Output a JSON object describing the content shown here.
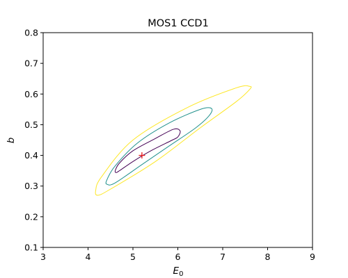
{
  "chart_data": {
    "type": "contour",
    "title": "MOS1 CCD1",
    "xlabel_main": "E",
    "xlabel_sub": "0",
    "ylabel": "b",
    "xlim": [
      3,
      9
    ],
    "ylim": [
      0.1,
      0.8
    ],
    "x_ticks": [
      3,
      4,
      5,
      6,
      7,
      8,
      9
    ],
    "y_ticks": [
      0.1,
      0.2,
      0.3,
      0.4,
      0.5,
      0.6,
      0.7,
      0.8
    ],
    "grid": false,
    "best_fit": {
      "x": 5.2,
      "y": 0.4,
      "marker": "+",
      "color": "#e8191b"
    },
    "contours": [
      {
        "color": "#440154",
        "points": [
          [
            4.62,
            0.344
          ],
          [
            4.7,
            0.35
          ],
          [
            5.0,
            0.38
          ],
          [
            5.4,
            0.415
          ],
          [
            5.85,
            0.448
          ],
          [
            6.0,
            0.46
          ],
          [
            6.05,
            0.48
          ],
          [
            5.9,
            0.485
          ],
          [
            5.5,
            0.455
          ],
          [
            5.0,
            0.415
          ],
          [
            4.7,
            0.375
          ],
          [
            4.61,
            0.352
          ]
        ]
      },
      {
        "color": "#21918c",
        "points": [
          [
            4.42,
            0.306
          ],
          [
            4.6,
            0.31
          ],
          [
            5.2,
            0.37
          ],
          [
            5.8,
            0.43
          ],
          [
            6.4,
            0.49
          ],
          [
            6.7,
            0.53
          ],
          [
            6.75,
            0.553
          ],
          [
            6.5,
            0.55
          ],
          [
            5.8,
            0.505
          ],
          [
            5.1,
            0.44
          ],
          [
            4.6,
            0.365
          ],
          [
            4.42,
            0.32
          ]
        ]
      },
      {
        "color": "#fde725",
        "points": [
          [
            4.22,
            0.27
          ],
          [
            4.5,
            0.29
          ],
          [
            5.5,
            0.38
          ],
          [
            6.5,
            0.49
          ],
          [
            7.3,
            0.575
          ],
          [
            7.6,
            0.615
          ],
          [
            7.6,
            0.625
          ],
          [
            7.3,
            0.62
          ],
          [
            6.2,
            0.555
          ],
          [
            5.0,
            0.45
          ],
          [
            4.3,
            0.33
          ],
          [
            4.17,
            0.285
          ]
        ]
      }
    ]
  }
}
